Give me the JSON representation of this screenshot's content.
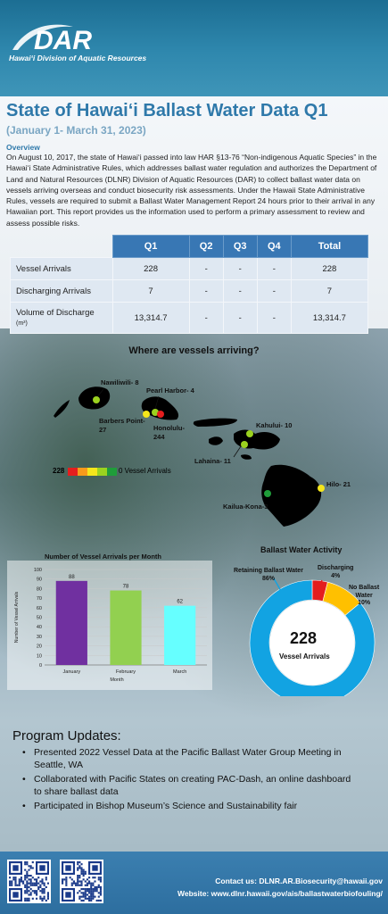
{
  "header": {
    "logo_text": "DAR",
    "logo_subtitle": "Hawai‘i Division of Aquatic Resources"
  },
  "title": "State of Hawai‘i Ballast Water Data Q1",
  "subtitle": "(January 1- March 31, 2023)",
  "overview": {
    "heading": "Overview",
    "body": "On August 10, 2017, the state of Hawai‘i passed into law HAR §13-76 “Non-indigenous Aquatic Species” in the Hawai‘i  State Administrative Rules, which addresses ballast water regulation and authorizes the Department of Land and Natural Resources (DLNR) Division of Aquatic Resources (DAR) to collect ballast water data on vessels arriving overseas and conduct biosecurity risk assessments. Under the Hawaii State Administrative Rules, vessels are required to submit a Ballast Water Management Report 24 hours prior to their arrival in any Hawaiian port. This report provides us the information used to perform a primary assessment to review and assess possible risks."
  },
  "table": {
    "headers": [
      "",
      "Q1",
      "Q2",
      "Q3",
      "Q4",
      "Total"
    ],
    "rows": [
      {
        "label": "Vessel Arrivals",
        "cells": [
          "228",
          "-",
          "-",
          "-",
          "228"
        ]
      },
      {
        "label": "Discharging Arrivals",
        "cells": [
          "7",
          "-",
          "-",
          "-",
          "7"
        ]
      },
      {
        "label": "Volume of Discharge",
        "unit": "(m³)",
        "cells": [
          "13,314.7",
          "-",
          "-",
          "-",
          "13,314.7"
        ]
      }
    ]
  },
  "map": {
    "title": "Where are vessels arriving?",
    "ports": {
      "nawiliwili": {
        "label": "Nawiliwili- 8",
        "color": "#f5e61b"
      },
      "pearl_harbor": {
        "label": "Pearl Harbor- 4",
        "color": "#9bd21f"
      },
      "barbers_point": {
        "label": "Barbers Point-\n27",
        "color": "#f5e61b"
      },
      "honolulu": {
        "label": "Honolulu-\n244",
        "color": "#e41e1e"
      },
      "kahului": {
        "label": "Kahului- 10",
        "color": "#9bd21f"
      },
      "lahaina": {
        "label": "Lahaina- 11",
        "color": "#9bd21f"
      },
      "hilo": {
        "label": "Hilo- 21",
        "color": "#f5e61b"
      },
      "kailua_kona": {
        "label": "Kailua-Kona-3",
        "color": "#1f9d3a"
      }
    },
    "legend": {
      "max": "228",
      "min": "0 Vessel Arrivals",
      "colors": [
        "#e41e1e",
        "#f79a1b",
        "#f5e61b",
        "#9bd21f",
        "#1f9d3a"
      ]
    }
  },
  "chart_data": [
    {
      "type": "bar",
      "title": "Number of Vessel Arrivals per Month",
      "xlabel": "Month",
      "ylabel": "Number of Vessel Arrivals",
      "categories": [
        "January",
        "February",
        "March"
      ],
      "values": [
        88,
        78,
        62
      ],
      "colors": [
        "#7030a0",
        "#92d050",
        "#66ffff"
      ],
      "ylim": [
        0,
        100
      ],
      "yticks": [
        0,
        10,
        20,
        30,
        40,
        50,
        60,
        70,
        80,
        90,
        100
      ]
    },
    {
      "type": "pie",
      "title": "Ballast Water Activity",
      "center_value": "228",
      "center_label": "Vessel Arrivals",
      "slices": [
        {
          "label": "Retaining Ballast Water\n86%",
          "value": 86,
          "color": "#12a3e2"
        },
        {
          "label": "Discharging\n4%",
          "value": 4,
          "color": "#e41e1e"
        },
        {
          "label": "No Ballast\nWater\n10%",
          "value": 10,
          "color": "#ffc000"
        }
      ]
    }
  ],
  "updates": {
    "heading": "Program Updates:",
    "items": [
      "Presented 2022 Vessel Data at the Pacific Ballast Water Group Meeting in Seattle, WA",
      "Collaborated with Pacific States on creating PAC-Dash, an online dashboard to share ballast data",
      "Participated in Bishop Museum’s Science and Sustainability fair"
    ]
  },
  "footer": {
    "contact": "Contact us: DLNR.AR.Biosecurity@hawaii.gov",
    "website": "Website: www.dlnr.hawaii.gov/ais/ballastwaterbiofouling/"
  }
}
